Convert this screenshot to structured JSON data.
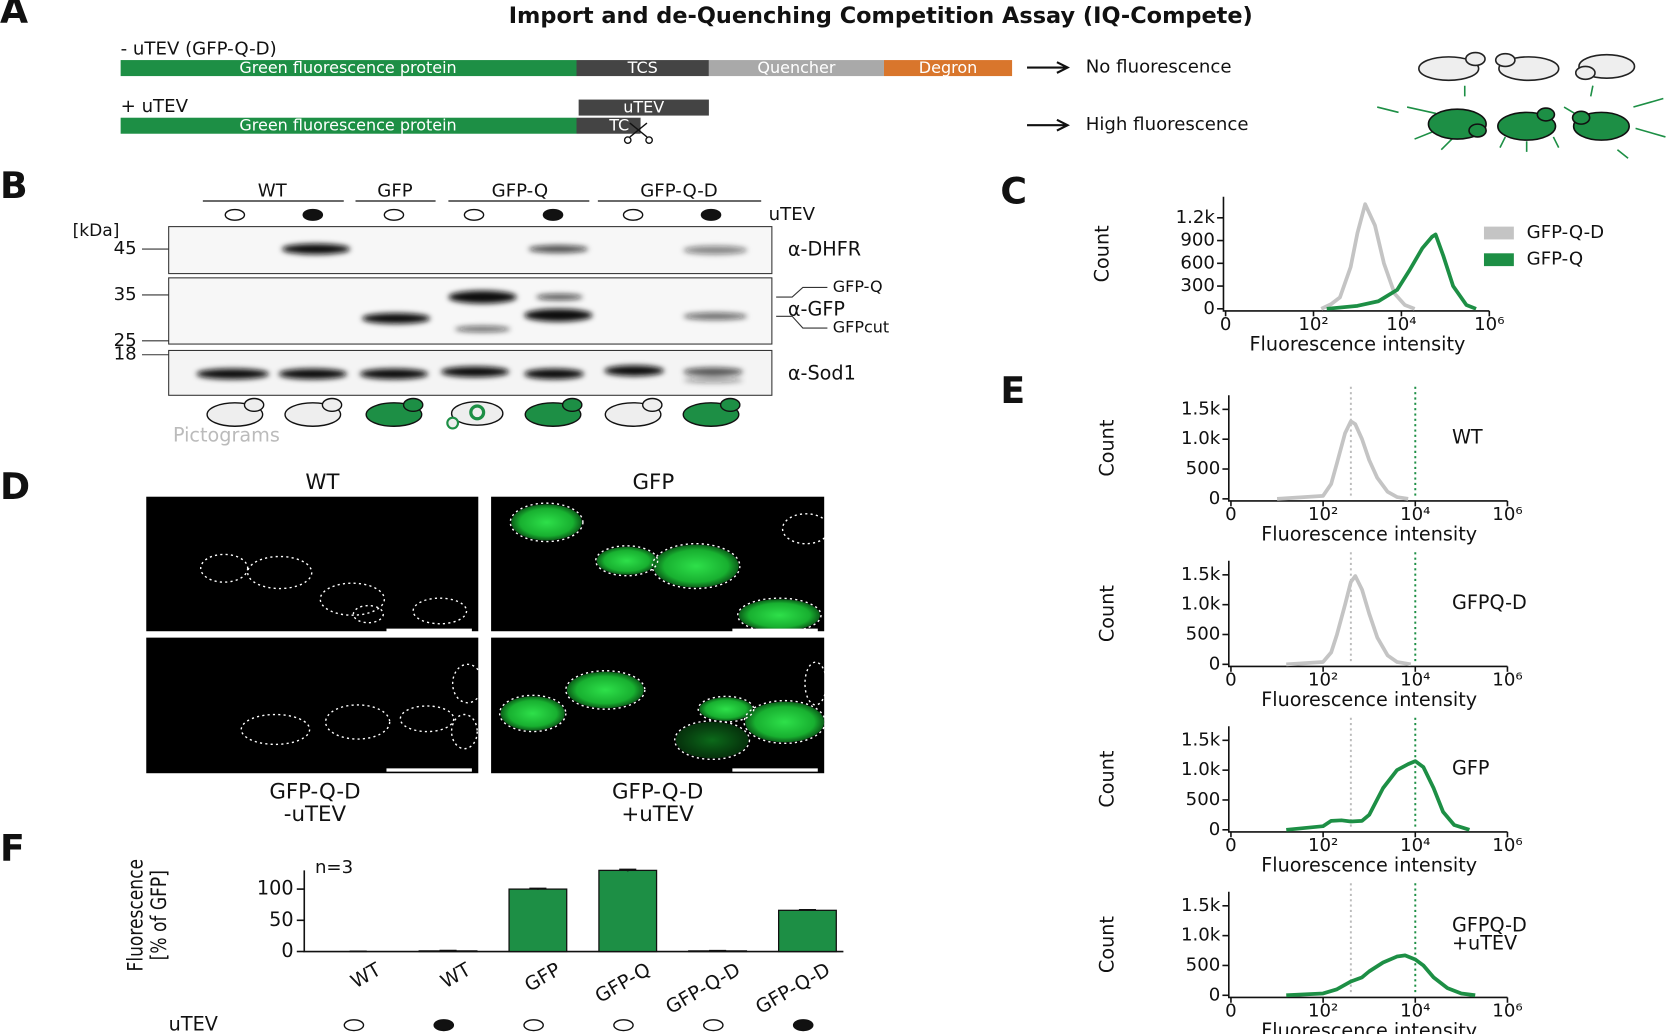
{
  "panels": {
    "A": {
      "letter": "A",
      "title": "Import and de-Quenching Competition Assay (IQ-Compete)",
      "construct_minus": {
        "label": "- uTEV (GFP-Q-D)",
        "segments": [
          "Green fluorescence protein",
          "TCS",
          "Quencher",
          "Degron"
        ],
        "outcome": "No fluorescence"
      },
      "construct_plus": {
        "label": "+ uTEV",
        "enzyme": "uTEV",
        "segments": [
          "Green fluorescence protein",
          "TC"
        ],
        "outcome": "High fluorescence"
      }
    },
    "B": {
      "letter": "B",
      "groups": [
        "WT",
        "GFP",
        "GFP-Q",
        "GFP-Q-D"
      ],
      "utev_label": "uTEV",
      "utev": [
        false,
        true,
        false,
        false,
        true,
        false,
        true
      ],
      "unit": "[kDa]",
      "markers": [
        "45",
        "35",
        "25",
        "18"
      ],
      "antibodies": [
        "α-DHFR",
        "α-GFP",
        "α-Sod1"
      ],
      "band_labels": [
        "GFP-Q",
        "GFPcut"
      ],
      "pictogram_label": "Pictograms"
    },
    "C": {
      "letter": "C"
    },
    "D": {
      "letter": "D",
      "top_labels": [
        "WT",
        "GFP"
      ],
      "bottom_labels": [
        [
          "GFP-Q-D",
          "-uTEV"
        ],
        [
          "GFP-Q-D",
          "+uTEV"
        ]
      ]
    },
    "E": {
      "letter": "E"
    },
    "F": {
      "letter": "F"
    }
  },
  "chart_data": [
    {
      "type": "line",
      "xlabel": "Fluorescence intensity",
      "ylabel": "Count",
      "xscale": "symlog",
      "xlim": [
        0,
        1000000
      ],
      "xticks": [
        0,
        {
          "value": 100,
          "label": "10²"
        },
        {
          "value": 10000,
          "label": "10⁴"
        },
        {
          "value": 1000000,
          "label": "10⁶"
        }
      ],
      "ylim": [
        0,
        1450
      ],
      "yticks": [
        0,
        300,
        600,
        900,
        {
          "value": 1200,
          "label": "1.2k"
        }
      ],
      "grid": false,
      "legend": "upper right",
      "series": [
        {
          "name": "GFP-Q-D",
          "color": "#c4c4c4",
          "x": [
            150,
            250,
            400,
            700,
            1000,
            1500,
            2500,
            4000,
            7000,
            12000,
            20000
          ],
          "values": [
            0,
            60,
            150,
            550,
            1000,
            1380,
            1100,
            600,
            200,
            50,
            0
          ]
        },
        {
          "name": "GFP-Q",
          "color": "#1d8f45",
          "x": [
            200,
            1000,
            3000,
            8000,
            15000,
            30000,
            50000,
            60000,
            90000,
            150000,
            300000,
            500000
          ],
          "values": [
            0,
            40,
            100,
            250,
            500,
            800,
            950,
            980,
            700,
            300,
            50,
            0
          ]
        }
      ]
    },
    {
      "type": "line",
      "xlabel": "Fluorescence intensity",
      "ylabel": "Count",
      "xscale": "symlog",
      "xlim": [
        0,
        1000000
      ],
      "xticks": [
        0,
        {
          "value": 100,
          "label": "10²"
        },
        {
          "value": 10000,
          "label": "10⁴"
        },
        {
          "value": 1000000,
          "label": "10⁶"
        }
      ],
      "ylim": [
        0,
        1700
      ],
      "yticks": [
        0,
        500,
        {
          "value": 1000,
          "label": "1.0k"
        },
        {
          "value": 1500,
          "label": "1.5k"
        }
      ],
      "grid": false,
      "vlines": [
        {
          "value": 400,
          "color": "#bbbbbb"
        },
        {
          "value": 10000,
          "color": "#1d8f45"
        }
      ],
      "annotation": [
        "WT"
      ],
      "series": [
        {
          "color": "#c4c4c4",
          "x": [
            50,
            100,
            150,
            200,
            300,
            400,
            500,
            700,
            1000,
            1500,
            2500,
            4000,
            7000
          ],
          "values": [
            0,
            50,
            250,
            600,
            1100,
            1300,
            1250,
            1000,
            650,
            350,
            120,
            30,
            0
          ]
        }
      ]
    },
    {
      "type": "line",
      "xlabel": "Fluorescence intensity",
      "ylabel": "Count",
      "xscale": "symlog",
      "xlim": [
        0,
        1000000
      ],
      "xticks": [
        0,
        {
          "value": 100,
          "label": "10²"
        },
        {
          "value": 10000,
          "label": "10⁴"
        },
        {
          "value": 1000000,
          "label": "10⁶"
        }
      ],
      "ylim": [
        0,
        1700
      ],
      "yticks": [
        0,
        500,
        {
          "value": 1000,
          "label": "1.0k"
        },
        {
          "value": 1500,
          "label": "1.5k"
        }
      ],
      "grid": false,
      "vlines": [
        {
          "value": 400,
          "color": "#bbbbbb"
        },
        {
          "value": 10000,
          "color": "#1d8f45"
        }
      ],
      "annotation": [
        "GFPQ-D"
      ],
      "series": [
        {
          "color": "#c4c4c4",
          "x": [
            60,
            100,
            150,
            200,
            300,
            400,
            500,
            700,
            1000,
            1500,
            2500,
            4000,
            8000
          ],
          "values": [
            0,
            40,
            200,
            500,
            1000,
            1380,
            1480,
            1250,
            850,
            450,
            150,
            40,
            0
          ]
        }
      ]
    },
    {
      "type": "line",
      "xlabel": "Fluorescence intensity",
      "ylabel": "Count",
      "xscale": "symlog",
      "xlim": [
        0,
        1000000
      ],
      "xticks": [
        0,
        {
          "value": 100,
          "label": "10²"
        },
        {
          "value": 10000,
          "label": "10⁴"
        },
        {
          "value": 1000000,
          "label": "10⁶"
        }
      ],
      "ylim": [
        0,
        1700
      ],
      "yticks": [
        0,
        500,
        {
          "value": 1000,
          "label": "1.0k"
        },
        {
          "value": 1500,
          "label": "1.5k"
        }
      ],
      "grid": false,
      "vlines": [
        {
          "value": 400,
          "color": "#bbbbbb"
        },
        {
          "value": 10000,
          "color": "#1d8f45"
        }
      ],
      "annotation": [
        "GFP"
      ],
      "series": [
        {
          "color": "#1d8f45",
          "x": [
            60,
            100,
            150,
            250,
            400,
            700,
            1000,
            2000,
            4000,
            7000,
            10000,
            15000,
            25000,
            40000,
            70000,
            150000
          ],
          "values": [
            0,
            60,
            150,
            160,
            140,
            150,
            250,
            700,
            1000,
            1100,
            1150,
            1050,
            700,
            300,
            80,
            0
          ]
        }
      ]
    },
    {
      "type": "line",
      "xlabel": "Fluorescence intensity",
      "ylabel": "Count",
      "xscale": "symlog",
      "xlim": [
        0,
        1000000
      ],
      "xticks": [
        0,
        {
          "value": 100,
          "label": "10²"
        },
        {
          "value": 10000,
          "label": "10⁴"
        },
        {
          "value": 1000000,
          "label": "10⁶"
        }
      ],
      "ylim": [
        0,
        1700
      ],
      "yticks": [
        0,
        500,
        {
          "value": 1000,
          "label": "1.0k"
        },
        {
          "value": 1500,
          "label": "1.5k"
        }
      ],
      "grid": false,
      "vlines": [
        {
          "value": 400,
          "color": "#bbbbbb"
        },
        {
          "value": 10000,
          "color": "#1d8f45"
        }
      ],
      "annotation": [
        "GFPQ-D",
        "+uTEV"
      ],
      "series": [
        {
          "color": "#1d8f45",
          "x": [
            60,
            100,
            200,
            400,
            700,
            1000,
            2000,
            4000,
            6000,
            10000,
            15000,
            25000,
            50000,
            100000,
            200000
          ],
          "values": [
            0,
            30,
            100,
            230,
            300,
            400,
            550,
            650,
            670,
            600,
            500,
            300,
            120,
            30,
            0
          ]
        }
      ]
    },
    {
      "type": "bar",
      "ylabel": [
        "Fluorescence",
        "[% of GFP]"
      ],
      "annotation": "n=3",
      "categories": [
        "WT",
        "WT",
        "GFP",
        "GFP-Q",
        "GFP-Q-D",
        "GFP-Q-D"
      ],
      "values": [
        0,
        1,
        100,
        130,
        1,
        66
      ],
      "errors": [
        0.3,
        0.5,
        1,
        1.5,
        0.3,
        0.8
      ],
      "color": "#1d8f45",
      "ylim": [
        0,
        130
      ],
      "yticks": [
        0,
        50,
        100
      ],
      "grid": false,
      "row_label": "uTEV",
      "utev": [
        false,
        true,
        false,
        false,
        false,
        true
      ]
    }
  ]
}
